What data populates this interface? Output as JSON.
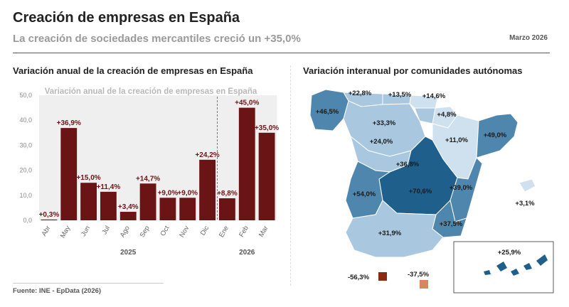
{
  "header": {
    "title": "Creación de empresas en España",
    "subtitle": "La creación de sociedades mercantiles creció un +35,0%",
    "date": "Marzo 2026"
  },
  "left_panel": {
    "title": "Variación anual de la creación de empresas en España"
  },
  "right_panel": {
    "title": "Variación interanual por comunidades autónomas"
  },
  "source": "Fuente: INE - EpData (2026)",
  "colors": {
    "bar": "#6b1416",
    "bar_label": "#6b1416",
    "chart_bg": "#efefef",
    "map_dark": "#1f5f8b",
    "map_mid": "#4f86ad",
    "map_light": "#a9c8df",
    "map_pale": "#cfe0ee",
    "legend_neg_dark": "#8a2a10",
    "legend_neg_light": "#d98660"
  },
  "chart_data": [
    {
      "type": "bar",
      "title": "Variación anual de la creación de empresas en España",
      "categories": [
        "Abr",
        "May",
        "Jun",
        "Jul",
        "Ago",
        "Sep",
        "Oct",
        "Nov",
        "Dic",
        "Ene",
        "Feb",
        "Mar"
      ],
      "values": [
        0.3,
        36.9,
        15.0,
        11.4,
        3.4,
        14.7,
        9.0,
        9.0,
        24.2,
        8.8,
        45.0,
        35.0
      ],
      "value_labels": [
        "+0,3%",
        "+36,9%",
        "+15,0%",
        "+11,4%",
        "+3,4%",
        "+14,7%",
        "+9,0%",
        "+9,0%",
        "+24,2%",
        "+8,8%",
        "+45,0%",
        "+35,0%"
      ],
      "year_labels": [
        "2025",
        "2026"
      ],
      "ylim": [
        0,
        50
      ],
      "yticks": [
        "0,0",
        "10,0",
        "20,0",
        "30,0",
        "40,0",
        "50,0"
      ],
      "xlabel": "",
      "ylabel": ""
    },
    {
      "type": "map",
      "title": "Variación interanual por comunidades autónomas",
      "regions": [
        {
          "name": "Galicia",
          "label": "+46,5%",
          "value": 46.5
        },
        {
          "name": "Asturias",
          "label": "+22,8%",
          "value": 22.8
        },
        {
          "name": "Cantabria",
          "label": "+13,5%",
          "value": 13.5
        },
        {
          "name": "País Vasco",
          "label": "+14,6%",
          "value": 14.6
        },
        {
          "name": "Navarra",
          "label": "+4,8%",
          "value": 4.8
        },
        {
          "name": "La Rioja",
          "label": "-56,3%",
          "value": -56.3
        },
        {
          "name": "Castilla y León",
          "label": "+33,3%",
          "value": 33.3
        },
        {
          "name": "Aragón",
          "label": "+11,0%",
          "value": 11.0
        },
        {
          "name": "Cataluña",
          "label": "+49,0%",
          "value": 49.0
        },
        {
          "name": "Madrid",
          "label": "+24,0%",
          "value": 24.0
        },
        {
          "name": "Castilla-La Mancha",
          "label": "+36,8%",
          "value": 36.8
        },
        {
          "name": "Extremadura",
          "label": "+54,0%",
          "value": 54.0
        },
        {
          "name": "Comunidad Valenciana",
          "label": "+39,0%",
          "value": 39.0
        },
        {
          "name": "Andalucía",
          "label": "+70,6%",
          "value": 70.6
        },
        {
          "name": "Murcia",
          "label": "+37,5%",
          "value": 37.5
        },
        {
          "name": "Andalucía Sur",
          "label": "+31,9%",
          "value": 31.9
        },
        {
          "name": "Baleares",
          "label": "+3,1%",
          "value": 3.1
        },
        {
          "name": "Canarias",
          "label": "+25,9%",
          "value": 25.9
        },
        {
          "name": "Ceuta",
          "label": "-37,5%",
          "value": -37.5
        }
      ]
    }
  ]
}
